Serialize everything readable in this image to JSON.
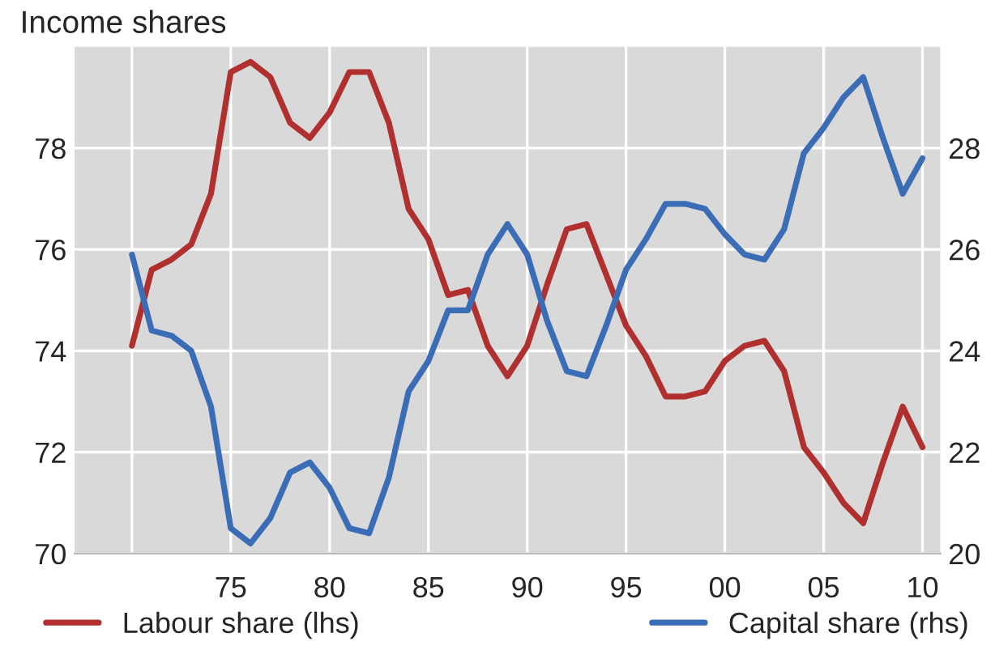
{
  "chart_data": {
    "type": "line",
    "title": "Income shares",
    "x": [
      1970,
      1971,
      1972,
      1973,
      1974,
      1975,
      1976,
      1977,
      1978,
      1979,
      1980,
      1981,
      1982,
      1983,
      1984,
      1985,
      1986,
      1987,
      1988,
      1989,
      1990,
      1991,
      1992,
      1993,
      1994,
      1995,
      1996,
      1997,
      1998,
      1999,
      2000,
      2001,
      2002,
      2003,
      2004,
      2005,
      2006,
      2007,
      2008,
      2009,
      2010
    ],
    "series": [
      {
        "name": "Labour share (lhs)",
        "color": "#b03030",
        "axis": "y",
        "values": [
          74.1,
          75.6,
          75.8,
          76.1,
          77.1,
          79.5,
          79.7,
          79.4,
          78.5,
          78.2,
          78.7,
          79.5,
          79.5,
          78.5,
          76.8,
          76.2,
          75.1,
          75.2,
          74.1,
          73.5,
          74.1,
          75.3,
          76.4,
          76.5,
          75.5,
          74.5,
          73.9,
          73.1,
          73.1,
          73.2,
          73.8,
          74.1,
          74.2,
          73.6,
          72.1,
          71.6,
          71.0,
          70.6,
          71.8,
          72.9,
          72.1
        ]
      },
      {
        "name": "Capital share (rhs)",
        "color": "#3a6db5",
        "axis": "y2",
        "values": [
          25.9,
          24.4,
          24.3,
          24.0,
          22.9,
          20.5,
          20.2,
          20.7,
          21.6,
          21.8,
          21.3,
          20.5,
          20.4,
          21.5,
          23.2,
          23.8,
          24.8,
          24.8,
          25.9,
          26.5,
          25.9,
          24.6,
          23.6,
          23.5,
          24.5,
          25.6,
          26.2,
          26.9,
          26.9,
          26.8,
          26.3,
          25.9,
          25.8,
          26.4,
          27.9,
          28.4,
          29.0,
          29.4,
          28.2,
          27.1,
          27.8
        ]
      }
    ],
    "xlim": [
      1967.1,
      2010.9
    ],
    "xticks": [
      {
        "value": 1970,
        "label": null
      },
      {
        "value": 1975,
        "label": "75"
      },
      {
        "value": 1980,
        "label": "80"
      },
      {
        "value": 1985,
        "label": "85"
      },
      {
        "value": 1990,
        "label": "90"
      },
      {
        "value": 1995,
        "label": "95"
      },
      {
        "value": 2000,
        "label": "00"
      },
      {
        "value": 2005,
        "label": "05"
      },
      {
        "value": 2010,
        "label": "10"
      }
    ],
    "ylim": [
      70,
      80
    ],
    "yticks": [
      70,
      72,
      74,
      76,
      78
    ],
    "y2lim": [
      20,
      30
    ],
    "y2ticks": [
      20,
      22,
      24,
      26,
      28
    ],
    "grid": true,
    "legend": "bottom",
    "marker": "none",
    "line_style": "solid"
  }
}
